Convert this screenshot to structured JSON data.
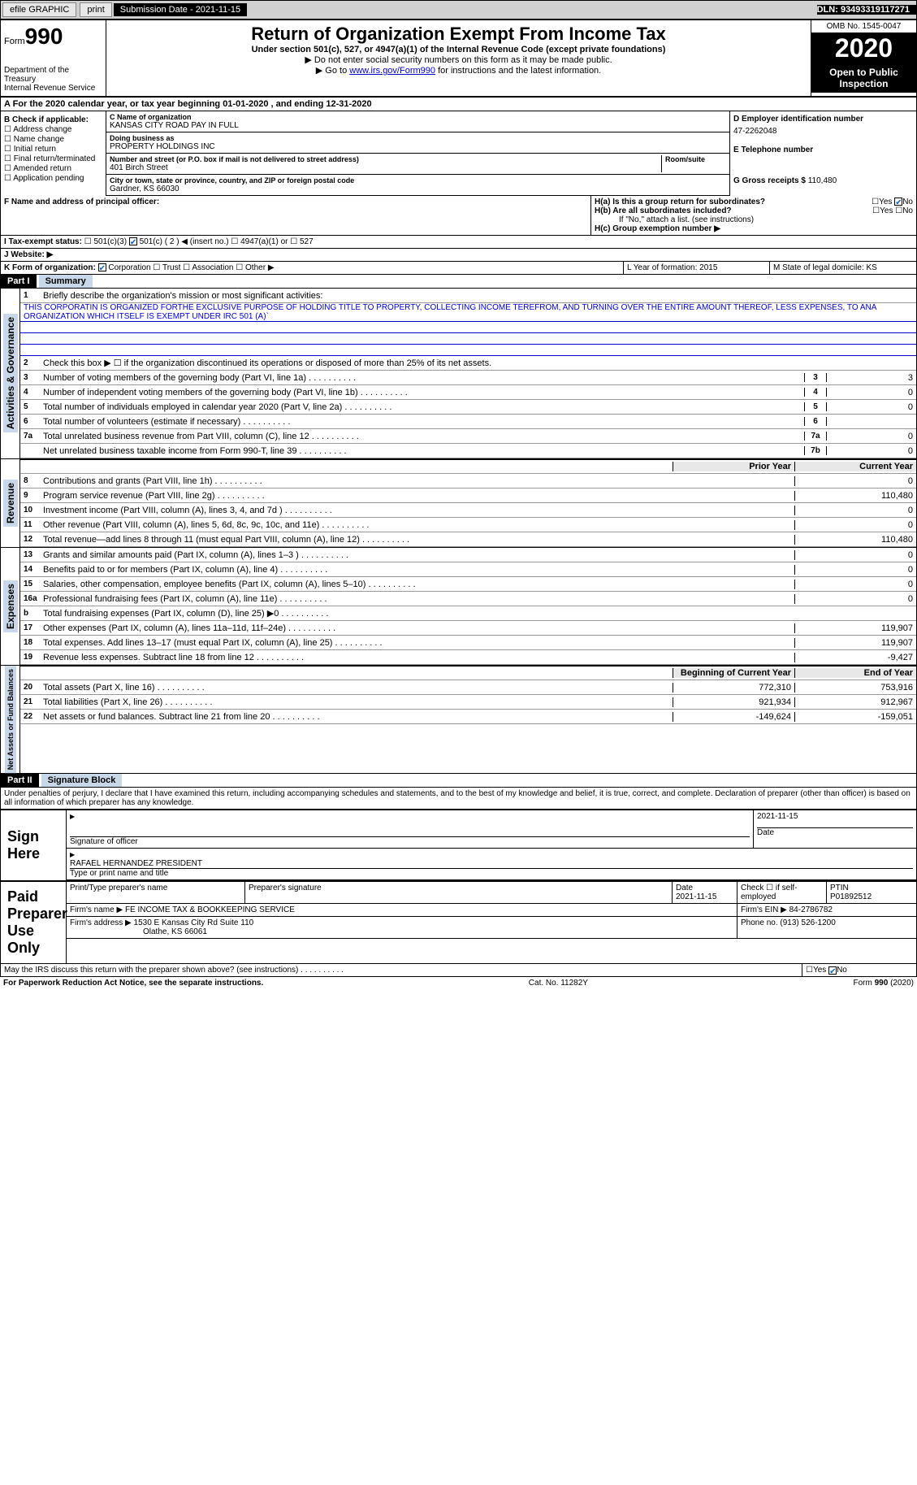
{
  "topbar": {
    "efile": "efile GRAPHIC",
    "print": "print",
    "sub_label": "Submission Date - 2021-11-15",
    "dln": "DLN: 93493319117271"
  },
  "header": {
    "form_word": "Form",
    "form_num": "990",
    "title": "Return of Organization Exempt From Income Tax",
    "sub1": "Under section 501(c), 527, or 4947(a)(1) of the Internal Revenue Code (except private foundations)",
    "sub2": "▶ Do not enter social security numbers on this form as it may be made public.",
    "sub3_pre": "▶ Go to ",
    "sub3_link": "www.irs.gov/Form990",
    "sub3_post": " for instructions and the latest information.",
    "dept1": "Department of the Treasury",
    "dept2": "Internal Revenue Service",
    "omb": "OMB No. 1545-0047",
    "year": "2020",
    "open": "Open to Public Inspection"
  },
  "row_a": "A For the 2020 calendar year, or tax year beginning 01-01-2020   , and ending 12-31-2020",
  "block_b": {
    "label": "B Check if applicable:",
    "opts": [
      "☐ Address change",
      "☐ Name change",
      "☐ Initial return",
      "☐ Final return/terminated",
      "☐ Amended return",
      "☐ Application pending"
    ]
  },
  "block_c": {
    "name_lbl": "C Name of organization",
    "name": "KANSAS CITY ROAD PAY IN FULL",
    "dba_lbl": "Doing business as",
    "dba": "PROPERTY HOLDINGS INC",
    "addr_lbl": "Number and street (or P.O. box if mail is not delivered to street address)",
    "addr": "401 Birch Street",
    "room_lbl": "Room/suite",
    "city_lbl": "City or town, state or province, country, and ZIP or foreign postal code",
    "city": "Gardner, KS  66030"
  },
  "block_d": {
    "ein_lbl": "D Employer identification number",
    "ein": "47-2262048",
    "tel_lbl": "E Telephone number",
    "gross_lbl": "G Gross receipts $",
    "gross": "110,480"
  },
  "block_f": "F  Name and address of principal officer:",
  "block_h": {
    "ha": "H(a)  Is this a group return for subordinates?",
    "hb": "H(b)  Are all subordinates included?",
    "hb_note": "If \"No,\" attach a list. (see instructions)",
    "hc": "H(c)  Group exemption number ▶",
    "yes": "Yes",
    "no": "No"
  },
  "row_i": {
    "lbl": "I  Tax-exempt status:",
    "o1": "501(c)(3)",
    "o2": "501(c) ( 2 ) ◀ (insert no.)",
    "o3": "4947(a)(1) or",
    "o4": "527"
  },
  "row_j": "J  Website: ▶",
  "row_k": "K Form of organization:",
  "row_k_opts": [
    "Corporation",
    "Trust",
    "Association",
    "Other ▶"
  ],
  "row_l": "L Year of formation: 2015",
  "row_m": "M State of legal domicile: KS",
  "part1": {
    "hdr": "Part I",
    "title": "Summary",
    "side1": "Activities & Governance",
    "side2": "Revenue",
    "side3": "Expenses",
    "side4": "Net Assets or Fund Balances",
    "l1": "Briefly describe the organization's mission or most significant activities:",
    "mission": "THIS CORPORATIN IS ORGANIZED FORTHE EXCLUSIVE PURPOSE OF HOLDING TITLE TO PROPERTY, COLLECTING INCOME TEREFROM, AND TURNING OVER THE ENTIRE AMOUNT THEREOF, LESS EXPENSES, TO ANA ORGANIZATION WHICH ITSELF IS EXEMPT UNDER IRC 501 (A)`",
    "l2": "Check this box ▶ ☐  if the organization discontinued its operations or disposed of more than 25% of its net assets.",
    "lines": [
      {
        "n": "3",
        "t": "Number of voting members of the governing body (Part VI, line 1a)",
        "b": "3",
        "v": "3"
      },
      {
        "n": "4",
        "t": "Number of independent voting members of the governing body (Part VI, line 1b)",
        "b": "4",
        "v": "0"
      },
      {
        "n": "5",
        "t": "Total number of individuals employed in calendar year 2020 (Part V, line 2a)",
        "b": "5",
        "v": "0"
      },
      {
        "n": "6",
        "t": "Total number of volunteers (estimate if necessary)",
        "b": "6",
        "v": ""
      },
      {
        "n": "7a",
        "t": "Total unrelated business revenue from Part VIII, column (C), line 12",
        "b": "7a",
        "v": "0"
      },
      {
        "n": "",
        "t": "Net unrelated business taxable income from Form 990-T, line 39",
        "b": "7b",
        "v": "0"
      }
    ],
    "col_prior": "Prior Year",
    "col_curr": "Current Year",
    "rev": [
      {
        "n": "8",
        "t": "Contributions and grants (Part VIII, line 1h)",
        "p": "",
        "c": "0"
      },
      {
        "n": "9",
        "t": "Program service revenue (Part VIII, line 2g)",
        "p": "",
        "c": "110,480"
      },
      {
        "n": "10",
        "t": "Investment income (Part VIII, column (A), lines 3, 4, and 7d )",
        "p": "",
        "c": "0"
      },
      {
        "n": "11",
        "t": "Other revenue (Part VIII, column (A), lines 5, 6d, 8c, 9c, 10c, and 11e)",
        "p": "",
        "c": "0"
      },
      {
        "n": "12",
        "t": "Total revenue—add lines 8 through 11 (must equal Part VIII, column (A), line 12)",
        "p": "",
        "c": "110,480"
      }
    ],
    "exp": [
      {
        "n": "13",
        "t": "Grants and similar amounts paid (Part IX, column (A), lines 1–3 )",
        "p": "",
        "c": "0"
      },
      {
        "n": "14",
        "t": "Benefits paid to or for members (Part IX, column (A), line 4)",
        "p": "",
        "c": "0"
      },
      {
        "n": "15",
        "t": "Salaries, other compensation, employee benefits (Part IX, column (A), lines 5–10)",
        "p": "",
        "c": "0"
      },
      {
        "n": "16a",
        "t": "Professional fundraising fees (Part IX, column (A), line 11e)",
        "p": "",
        "c": "0"
      },
      {
        "n": "b",
        "t": "Total fundraising expenses (Part IX, column (D), line 25) ▶0",
        "p": "grey",
        "c": "grey"
      },
      {
        "n": "17",
        "t": "Other expenses (Part IX, column (A), lines 11a–11d, 11f–24e)",
        "p": "",
        "c": "119,907"
      },
      {
        "n": "18",
        "t": "Total expenses. Add lines 13–17 (must equal Part IX, column (A), line 25)",
        "p": "",
        "c": "119,907"
      },
      {
        "n": "19",
        "t": "Revenue less expenses. Subtract line 18 from line 12",
        "p": "",
        "c": "-9,427"
      }
    ],
    "col_begin": "Beginning of Current Year",
    "col_end": "End of Year",
    "net": [
      {
        "n": "20",
        "t": "Total assets (Part X, line 16)",
        "p": "772,310",
        "c": "753,916"
      },
      {
        "n": "21",
        "t": "Total liabilities (Part X, line 26)",
        "p": "921,934",
        "c": "912,967"
      },
      {
        "n": "22",
        "t": "Net assets or fund balances. Subtract line 21 from line 20",
        "p": "-149,624",
        "c": "-159,051"
      }
    ]
  },
  "part2": {
    "hdr": "Part II",
    "title": "Signature Block",
    "decl": "Under penalties of perjury, I declare that I have examined this return, including accompanying schedules and statements, and to the best of my knowledge and belief, it is true, correct, and complete. Declaration of preparer (other than officer) is based on all information of which preparer has any knowledge.",
    "sign_here": "Sign Here",
    "sig_officer": "Signature of officer",
    "sig_date": "2021-11-15",
    "date_lbl": "Date",
    "officer_name": "RAFAEL HERNANDEZ  PRESIDENT",
    "type_name": "Type or print name and title",
    "paid": "Paid Preparer Use Only",
    "prep_name_lbl": "Print/Type preparer's name",
    "prep_sig_lbl": "Preparer's signature",
    "prep_date_lbl": "Date",
    "prep_date": "2021-11-15",
    "check_lbl": "Check ☐ if self-employed",
    "ptin_lbl": "PTIN",
    "ptin": "P01892512",
    "firm_name_lbl": "Firm's name   ▶",
    "firm_name": "FE INCOME TAX & BOOKKEEPING SERVICE",
    "firm_ein_lbl": "Firm's EIN ▶",
    "firm_ein": "84-2786782",
    "firm_addr_lbl": "Firm's address ▶",
    "firm_addr1": "1530 E Kansas City Rd Suite 110",
    "firm_addr2": "Olathe, KS  66061",
    "phone_lbl": "Phone no.",
    "phone": "(913) 526-1200",
    "may_irs": "May the IRS discuss this return with the preparer shown above? (see instructions)"
  },
  "footer": {
    "left": "For Paperwork Reduction Act Notice, see the separate instructions.",
    "mid": "Cat. No. 11282Y",
    "right": "Form 990 (2020)"
  }
}
